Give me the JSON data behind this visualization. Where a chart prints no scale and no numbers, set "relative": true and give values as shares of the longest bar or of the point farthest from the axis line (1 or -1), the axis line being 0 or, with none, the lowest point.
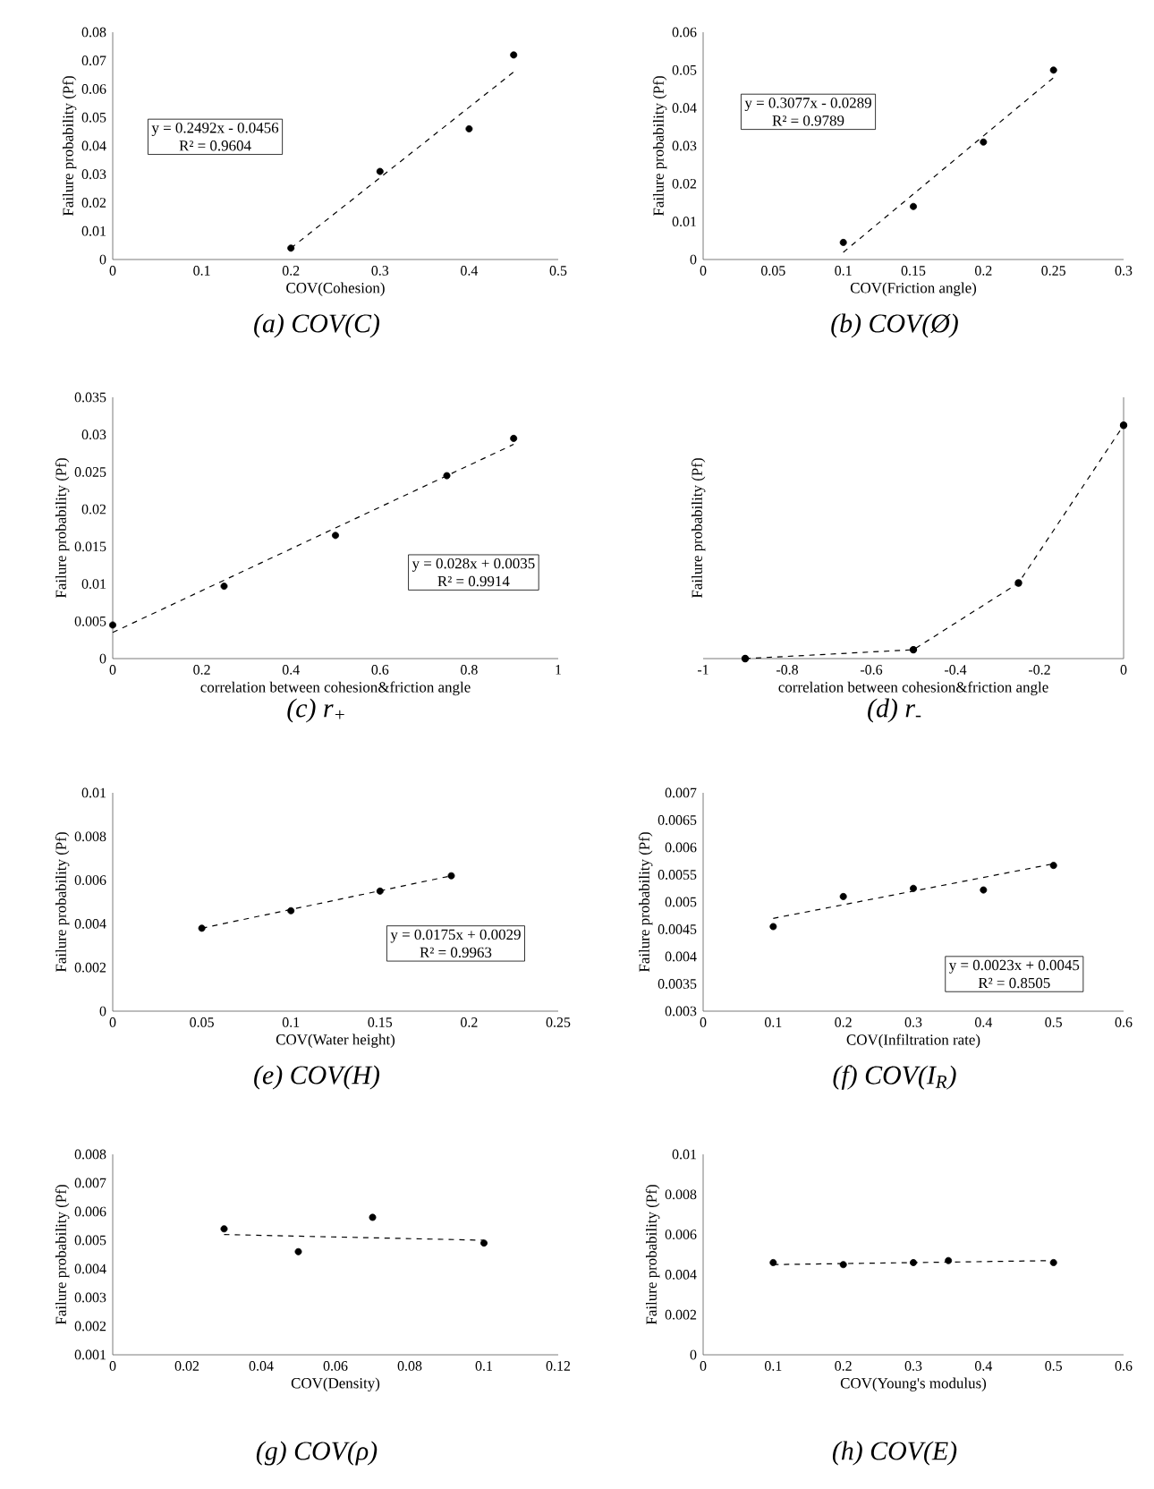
{
  "chart_data": [
    {
      "type": "scatter",
      "title": "(a) COV(C)",
      "xlabel": "COV(Cohesion)",
      "ylabel": "Failure probability (Pf)",
      "xlim": [
        0,
        0.5
      ],
      "xticks": [
        0,
        0.1,
        0.2,
        0.3,
        0.4,
        0.5
      ],
      "ylim": [
        0,
        0.08
      ],
      "yticks": [
        0,
        0.01,
        0.02,
        0.03,
        0.04,
        0.05,
        0.06,
        0.07,
        0.08
      ],
      "annotations": [
        "y = 0.2492x - 0.0456",
        "R² = 0.9604"
      ],
      "series": [
        {
          "color": "#000000",
          "marker": "circle",
          "x": [
            0.2,
            0.3,
            0.4,
            0.45
          ],
          "values": [
            0.004,
            0.031,
            0.046,
            0.072
          ]
        },
        {
          "type": "line",
          "color": "#000000",
          "marker": "none",
          "line_style": "dashed",
          "x": [
            0.2,
            0.45
          ],
          "values": [
            0.004,
            0.066
          ]
        }
      ]
    },
    {
      "type": "scatter",
      "title": "(b) COV(Ø)",
      "xlabel": "COV(Friction angle)",
      "ylabel": "Failure probability (Pf)",
      "xlim": [
        0,
        0.3
      ],
      "xticks": [
        0,
        0.05,
        0.1,
        0.15,
        0.2,
        0.25,
        0.3
      ],
      "ylim": [
        0,
        0.06
      ],
      "yticks": [
        0,
        0.01,
        0.02,
        0.03,
        0.04,
        0.05,
        0.06
      ],
      "annotations": [
        "y = 0.3077x - 0.0289",
        "R² = 0.9789"
      ],
      "series": [
        {
          "color": "#000000",
          "marker": "circle",
          "x": [
            0.1,
            0.15,
            0.2,
            0.25
          ],
          "values": [
            0.0045,
            0.014,
            0.031,
            0.05
          ]
        },
        {
          "type": "line",
          "color": "#000000",
          "marker": "none",
          "line_style": "dashed",
          "x": [
            0.1,
            0.25
          ],
          "values": [
            0.0019,
            0.048
          ]
        }
      ]
    },
    {
      "type": "scatter",
      "title": "(c) r$_{+}$",
      "xlabel": "correlation between cohesion&friction angle",
      "ylabel": "Failure probability (Pf)",
      "xlim": [
        0,
        1
      ],
      "xticks": [
        0,
        0.2,
        0.4,
        0.6,
        0.8,
        1
      ],
      "ylim": [
        0,
        0.035
      ],
      "yticks": [
        0,
        0.005,
        0.01,
        0.015,
        0.02,
        0.025,
        0.03,
        0.035
      ],
      "annotations": [
        "y = 0.028x + 0.0035",
        "R² = 0.9914"
      ],
      "series": [
        {
          "color": "#000000",
          "marker": "circle",
          "x": [
            0,
            0.25,
            0.5,
            0.75,
            0.9
          ],
          "values": [
            0.0045,
            0.0097,
            0.0165,
            0.0245,
            0.0295
          ]
        },
        {
          "type": "line",
          "color": "#000000",
          "marker": "none",
          "line_style": "dashed",
          "x": [
            0,
            0.9
          ],
          "values": [
            0.0035,
            0.0287
          ]
        }
      ]
    },
    {
      "type": "line",
      "relative": true,
      "title": "(d) r$_{-}$",
      "xlabel": "correlation between cohesion&friction angle",
      "ylabel": "Failure probability (Pf)",
      "xlim": [
        -1,
        0
      ],
      "xticks": [
        -1,
        -0.8,
        -0.6,
        -0.4,
        -0.2,
        0
      ],
      "series": [
        {
          "color": "#000000",
          "marker": "circle",
          "line_style": "dashed",
          "x": [
            -0.9,
            -0.5,
            -0.25,
            0
          ],
          "values": [
            0,
            0.038,
            0.324,
            1
          ]
        }
      ]
    },
    {
      "type": "scatter",
      "title": "(e) COV(H)",
      "xlabel": "COV(Water height)",
      "ylabel": "Failure probability (Pf)",
      "xlim": [
        0,
        0.25
      ],
      "xticks": [
        0,
        0.05,
        0.1,
        0.15,
        0.2,
        0.25
      ],
      "ylim": [
        0,
        0.01
      ],
      "yticks": [
        0,
        0.002,
        0.004,
        0.006,
        0.008,
        0.01
      ],
      "annotations": [
        "y = 0.0175x + 0.0029",
        "R² = 0.9963"
      ],
      "series": [
        {
          "color": "#000000",
          "marker": "circle",
          "x": [
            0.05,
            0.1,
            0.15,
            0.19
          ],
          "values": [
            0.0038,
            0.0046,
            0.0055,
            0.0062
          ]
        },
        {
          "type": "line",
          "color": "#000000",
          "marker": "none",
          "line_style": "dashed",
          "x": [
            0.05,
            0.19
          ],
          "values": [
            0.0038,
            0.0062
          ]
        }
      ]
    },
    {
      "type": "scatter",
      "title": "(f) COV(I$_{R}$)",
      "xlabel": "COV(Infiltration rate)",
      "ylabel": "Failure probability (Pf)",
      "xlim": [
        0,
        0.6
      ],
      "xticks": [
        0,
        0.1,
        0.2,
        0.3,
        0.4,
        0.5,
        0.6
      ],
      "ylim": [
        0.003,
        0.007
      ],
      "yticks": [
        0.003,
        0.0035,
        0.004,
        0.0045,
        0.005,
        0.0055,
        0.006,
        0.0065,
        0.007
      ],
      "annotations": [
        "y = 0.0023x + 0.0045",
        "R² = 0.8505"
      ],
      "series": [
        {
          "color": "#000000",
          "marker": "circle",
          "x": [
            0.1,
            0.2,
            0.3,
            0.4,
            0.5
          ],
          "values": [
            0.00455,
            0.0051,
            0.00525,
            0.00522,
            0.00567
          ]
        },
        {
          "type": "line",
          "color": "#000000",
          "marker": "none",
          "line_style": "dashed",
          "x": [
            0.1,
            0.5
          ],
          "values": [
            0.0047,
            0.0057
          ]
        }
      ]
    },
    {
      "type": "scatter",
      "title": "(g) COV(ρ)",
      "xlabel": "COV(Density)",
      "ylabel": "Failure probability (Pf)",
      "xlim": [
        0,
        0.12
      ],
      "xticks": [
        0,
        0.02,
        0.04,
        0.06,
        0.08,
        0.1,
        0.12
      ],
      "ylim": [
        0.001,
        0.008
      ],
      "yticks": [
        0.001,
        0.002,
        0.003,
        0.004,
        0.005,
        0.006,
        0.007,
        0.008
      ],
      "series": [
        {
          "color": "#000000",
          "marker": "circle",
          "x": [
            0.03,
            0.05,
            0.07,
            0.1
          ],
          "values": [
            0.0054,
            0.0046,
            0.0058,
            0.0049
          ]
        },
        {
          "type": "line",
          "color": "#000000",
          "marker": "none",
          "line_style": "dashed",
          "x": [
            0.03,
            0.1
          ],
          "values": [
            0.0052,
            0.005
          ]
        }
      ]
    },
    {
      "type": "scatter",
      "title": "(h) COV(E)",
      "xlabel": "COV(Young's modulus)",
      "ylabel": "Failure probability (Pf)",
      "xlim": [
        0,
        0.6
      ],
      "xticks": [
        0,
        0.1,
        0.2,
        0.3,
        0.4,
        0.5,
        0.6
      ],
      "ylim": [
        0,
        0.01
      ],
      "yticks": [
        0,
        0.002,
        0.004,
        0.006,
        0.008,
        0.01
      ],
      "series": [
        {
          "color": "#000000",
          "marker": "circle",
          "x": [
            0.1,
            0.2,
            0.3,
            0.35,
            0.5
          ],
          "values": [
            0.0046,
            0.0045,
            0.0046,
            0.0047,
            0.0046
          ]
        },
        {
          "type": "line",
          "color": "#000000",
          "marker": "none",
          "line_style": "dashed",
          "x": [
            0.1,
            0.5
          ],
          "values": [
            0.0045,
            0.0047
          ]
        }
      ]
    }
  ]
}
